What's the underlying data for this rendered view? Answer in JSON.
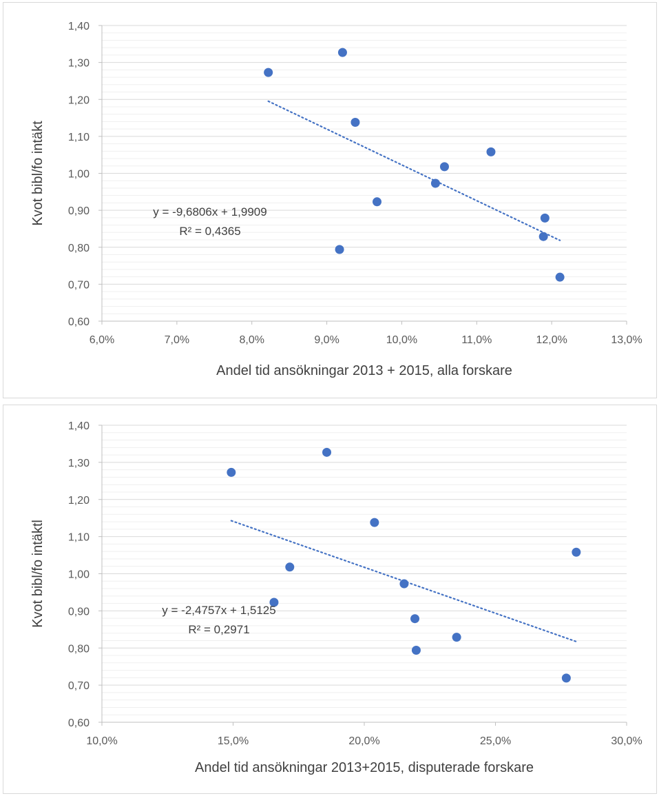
{
  "chart_data": [
    {
      "type": "scatter",
      "xlabel": "Andel tid ansökningar 2013 + 2015, alla forskare",
      "ylabel": "Kvot bibl/fo intäkt",
      "xlim": [
        0.06,
        0.13
      ],
      "ylim": [
        0.6,
        1.4
      ],
      "xticks": [
        "6,0%",
        "7,0%",
        "8,0%",
        "9,0%",
        "10,0%",
        "11,0%",
        "12,0%",
        "13,0%"
      ],
      "yticks": [
        "0,60",
        "0,70",
        "0,80",
        "0,90",
        "1,00",
        "1,10",
        "1,20",
        "1,30",
        "1,40"
      ],
      "grid": true,
      "minor_grid": true,
      "marker_color": "#4472c4",
      "points": [
        {
          "x": 0.0822,
          "y": 1.273
        },
        {
          "x": 0.0921,
          "y": 1.327
        },
        {
          "x": 0.0938,
          "y": 1.138
        },
        {
          "x": 0.1119,
          "y": 1.058
        },
        {
          "x": 0.1057,
          "y": 1.018
        },
        {
          "x": 0.1045,
          "y": 0.973
        },
        {
          "x": 0.0967,
          "y": 0.923
        },
        {
          "x": 0.1191,
          "y": 0.879
        },
        {
          "x": 0.1189,
          "y": 0.829
        },
        {
          "x": 0.0917,
          "y": 0.794
        },
        {
          "x": 0.1211,
          "y": 0.719
        }
      ],
      "trendline": {
        "slope": -9.6806,
        "intercept": 1.9909,
        "x_range": [
          0.0822,
          0.1211
        ],
        "style": "dotted"
      },
      "equation": "y = -9,6806x + 1,9909",
      "r_squared": "R² = 0,4365"
    },
    {
      "type": "scatter",
      "xlabel": "Andel tid ansökningar 2013+2015, disputerade forskare",
      "ylabel": "Kvot bibl/fo intäktl",
      "xlim": [
        0.1,
        0.3
      ],
      "ylim": [
        0.6,
        1.4
      ],
      "xticks": [
        "10,0%",
        "15,0%",
        "20,0%",
        "25,0%",
        "30,0%"
      ],
      "yticks": [
        "0,60",
        "0,70",
        "0,80",
        "0,90",
        "1,00",
        "1,10",
        "1,20",
        "1,30",
        "1,40"
      ],
      "grid": true,
      "minor_grid": true,
      "marker_color": "#4472c4",
      "points": [
        {
          "x": 0.1493,
          "y": 1.273
        },
        {
          "x": 0.1857,
          "y": 1.327
        },
        {
          "x": 0.2039,
          "y": 1.138
        },
        {
          "x": 0.2808,
          "y": 1.058
        },
        {
          "x": 0.1716,
          "y": 1.018
        },
        {
          "x": 0.2152,
          "y": 0.973
        },
        {
          "x": 0.1656,
          "y": 0.923
        },
        {
          "x": 0.2193,
          "y": 0.879
        },
        {
          "x": 0.2352,
          "y": 0.829
        },
        {
          "x": 0.2198,
          "y": 0.794
        },
        {
          "x": 0.277,
          "y": 0.719
        }
      ],
      "trendline": {
        "slope": -2.4757,
        "intercept": 1.5125,
        "x_range": [
          0.1493,
          0.2808
        ],
        "style": "dotted"
      },
      "equation": "y = -2,4757x + 1,5125",
      "r_squared": "R² = 0,2971"
    }
  ]
}
